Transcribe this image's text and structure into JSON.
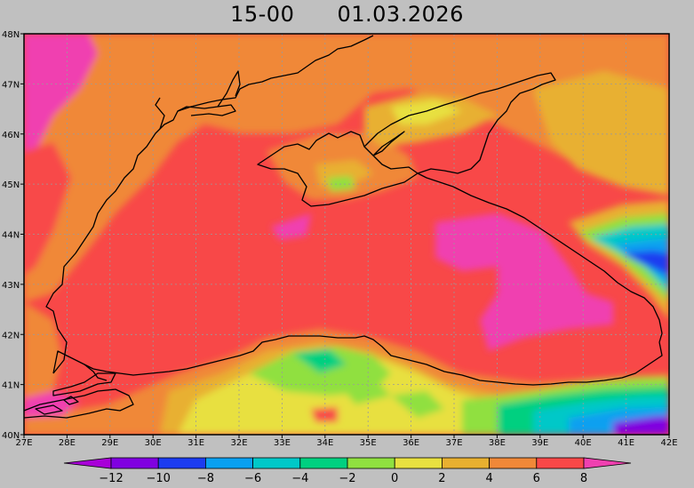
{
  "title": {
    "time": "15-00",
    "date": "01.03.2026"
  },
  "map": {
    "lon_range": [
      27,
      42
    ],
    "lat_range": [
      40,
      48
    ],
    "lon_ticks": [
      "27E",
      "28E",
      "29E",
      "30E",
      "31E",
      "32E",
      "33E",
      "34E",
      "35E",
      "36E",
      "37E",
      "38E",
      "39E",
      "40E",
      "41E",
      "42E"
    ],
    "lat_ticks": [
      "48N",
      "47N",
      "46N",
      "45N",
      "44N",
      "43N",
      "42N",
      "41N",
      "40N"
    ],
    "grid": "dotted"
  },
  "colorbar": {
    "tick_labels": [
      "−12",
      "−10",
      "−8",
      "−6",
      "−4",
      "−2",
      "0",
      "2",
      "4",
      "6",
      "8"
    ],
    "colors": [
      "#a800d8",
      "#8000e0",
      "#1c3cf0",
      "#0aa0f0",
      "#00c8c8",
      "#00d080",
      "#90e040",
      "#e8e040",
      "#e8b030",
      "#f08838",
      "#f84848",
      "#f040b0"
    ]
  }
}
